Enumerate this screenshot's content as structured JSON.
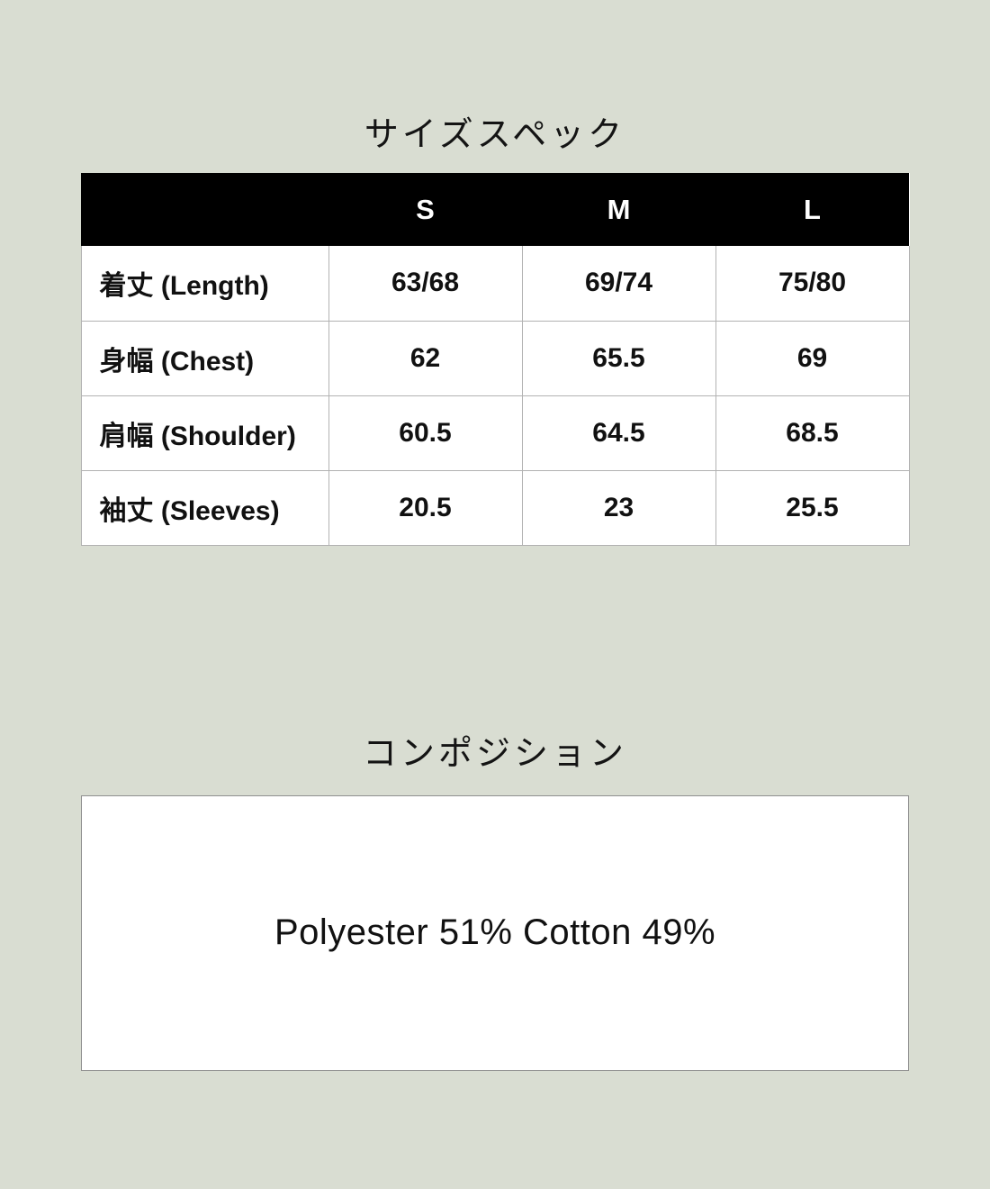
{
  "page": {
    "background_color": "#d9ddd2"
  },
  "size_spec": {
    "title": "サイズスペック",
    "header": {
      "background_color": "#000000",
      "text_color": "#ffffff",
      "columns": [
        "S",
        "M",
        "L"
      ]
    },
    "rows": [
      {
        "label": "着丈 (Length)",
        "values": [
          "63/68",
          "69/74",
          "75/80"
        ]
      },
      {
        "label": "身幅 (Chest)",
        "values": [
          "62",
          "65.5",
          "69"
        ]
      },
      {
        "label": "肩幅 (Shoulder)",
        "values": [
          "60.5",
          "64.5",
          "68.5"
        ]
      },
      {
        "label": "袖丈 (Sleeves)",
        "values": [
          "20.5",
          "23",
          "25.5"
        ]
      }
    ]
  },
  "composition": {
    "title": "コンポジション",
    "text": "Polyester 51% Cotton 49%"
  }
}
